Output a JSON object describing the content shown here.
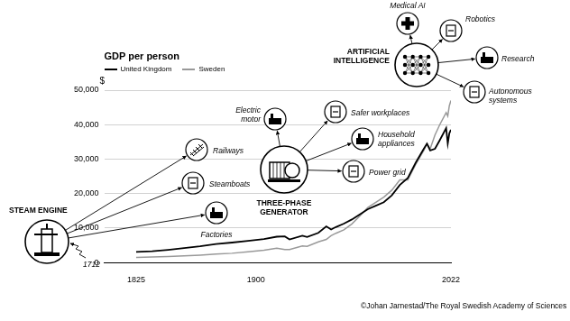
{
  "chart_data": {
    "type": "line",
    "title": "GDP per person",
    "ylabel": "$",
    "x": [
      1825,
      1835,
      1845,
      1855,
      1865,
      1875,
      1885,
      1895,
      1905,
      1913,
      1918,
      1921,
      1929,
      1932,
      1939,
      1944,
      1947,
      1950,
      1955,
      1960,
      1965,
      1970,
      1975,
      1980,
      1985,
      1990,
      1995,
      2000,
      2005,
      2007,
      2009,
      2012,
      2015,
      2019,
      2020,
      2021,
      2022
    ],
    "series": [
      {
        "name": "United Kingdom",
        "color": "#000000",
        "values": [
          3100,
          3300,
          3700,
          4200,
          4700,
          5400,
          5800,
          6300,
          6800,
          7500,
          7600,
          6700,
          7800,
          7400,
          8600,
          10500,
          9600,
          10300,
          11300,
          12500,
          14000,
          15500,
          16500,
          17500,
          19500,
          22500,
          24500,
          29000,
          33000,
          34500,
          32500,
          33000,
          35500,
          39000,
          34500,
          37500,
          38500
        ]
      },
      {
        "name": "Sweden",
        "color": "#999999",
        "values": [
          1500,
          1600,
          1750,
          1950,
          2150,
          2450,
          2700,
          3100,
          3600,
          4200,
          3800,
          3800,
          4800,
          4700,
          6000,
          6700,
          7800,
          8500,
          9500,
          11200,
          13500,
          16000,
          17500,
          19000,
          21000,
          24000,
          24000,
          28500,
          32500,
          34500,
          33000,
          37000,
          40000,
          43500,
          42500,
          45500,
          47000
        ]
      }
    ],
    "xlim": [
      1805,
      2022
    ],
    "xticks": [
      1825,
      1900,
      2022
    ],
    "ylim": [
      0,
      50000
    ],
    "yticks": [
      0,
      {
        "value": 10000,
        "label": "10,000"
      },
      {
        "value": 20000,
        "label": "20,000"
      },
      {
        "value": 30000,
        "label": "30,000"
      },
      {
        "value": 40000,
        "label": "40,000"
      },
      {
        "value": 50000,
        "label": "50,000"
      }
    ],
    "grid": true,
    "legend": "top-left",
    "annotations": [
      {
        "label": "STEAM ENGINE",
        "date": "1712",
        "items": [
          "Railways",
          "Steamboats",
          "Factories"
        ]
      },
      {
        "label": "THREE-PHASE GENERATOR",
        "items": [
          "Electric motor",
          "Safer workplaces",
          "Household appliances",
          "Power grid"
        ]
      },
      {
        "label": "ARTIFICIAL INTELLIGENCE",
        "items": [
          "Medical AI",
          "Robotics",
          "Research",
          "Autonomous systems"
        ]
      }
    ],
    "credit": "©Johan Jarnestad/The Royal Swedish Academy of Sciences"
  }
}
